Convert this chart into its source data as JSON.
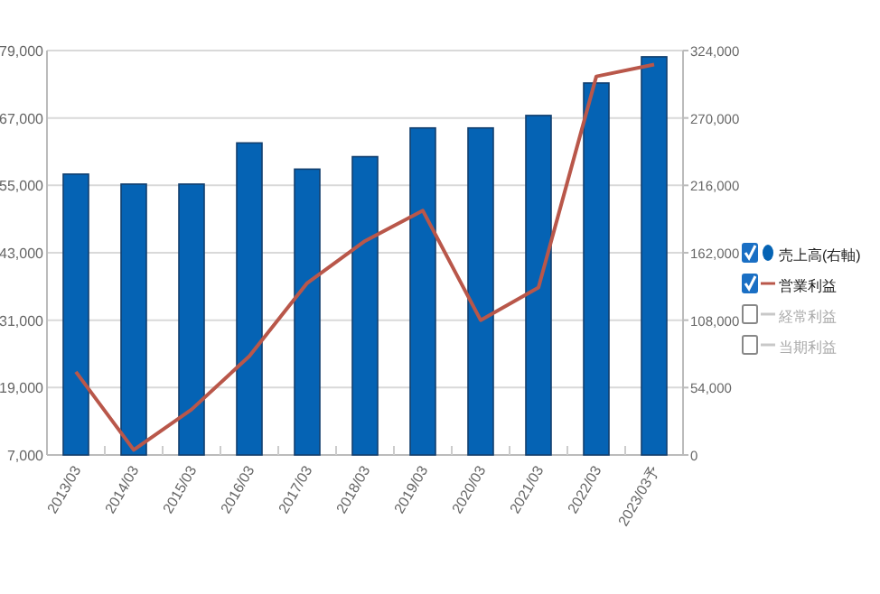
{
  "chart_data": {
    "type": "bar",
    "categories": [
      "2013/03",
      "2014/03",
      "2015/03",
      "2016/03",
      "2017/03",
      "2018/03",
      "2019/03",
      "2020/03",
      "2021/03",
      "2022/03",
      "2023/03予"
    ],
    "series": [
      {
        "name": "売上高(右軸)",
        "axis": "y2",
        "color": "#0563b4",
        "values": [
          225000,
          217000,
          217000,
          250000,
          229000,
          239000,
          262000,
          262000,
          272000,
          298000,
          319000
        ]
      },
      {
        "name": "営業利益",
        "type": "line",
        "color": "#b9574a",
        "values": [
          21800,
          7900,
          15100,
          24600,
          37600,
          45100,
          50500,
          31000,
          36800,
          74400,
          76500
        ]
      },
      {
        "name": "経常利益",
        "type": "line",
        "color": "#c8c8c8",
        "values": [
          null,
          null,
          null,
          null,
          null,
          null,
          null,
          null,
          null,
          null,
          null
        ]
      },
      {
        "name": "当期利益",
        "type": "line",
        "color": "#c8c8c8",
        "values": [
          null,
          null,
          null,
          null,
          null,
          null,
          null,
          null,
          null,
          null,
          null
        ]
      }
    ],
    "ylim": [
      7000,
      79000
    ],
    "yticks": [
      {
        "value": 7000,
        "label": "7,000"
      },
      {
        "value": 19000,
        "label": "19,000"
      },
      {
        "value": 31000,
        "label": "31,000"
      },
      {
        "value": 43000,
        "label": "43,000"
      },
      {
        "value": 55000,
        "label": "55,000"
      },
      {
        "value": 67000,
        "label": "67,000"
      },
      {
        "value": 79000,
        "label": "79,000"
      }
    ],
    "y2lim": [
      0,
      324000
    ],
    "y2ticks": [
      0,
      {
        "value": 54000,
        "label": "54,000"
      },
      {
        "value": 108000,
        "label": "108,000"
      },
      {
        "value": 162000,
        "label": "162,000"
      },
      {
        "value": 216000,
        "label": "216,000"
      },
      {
        "value": 270000,
        "label": "270,000"
      },
      {
        "value": 324000,
        "label": "324,000"
      }
    ],
    "grid": "y",
    "legend": "right"
  }
}
